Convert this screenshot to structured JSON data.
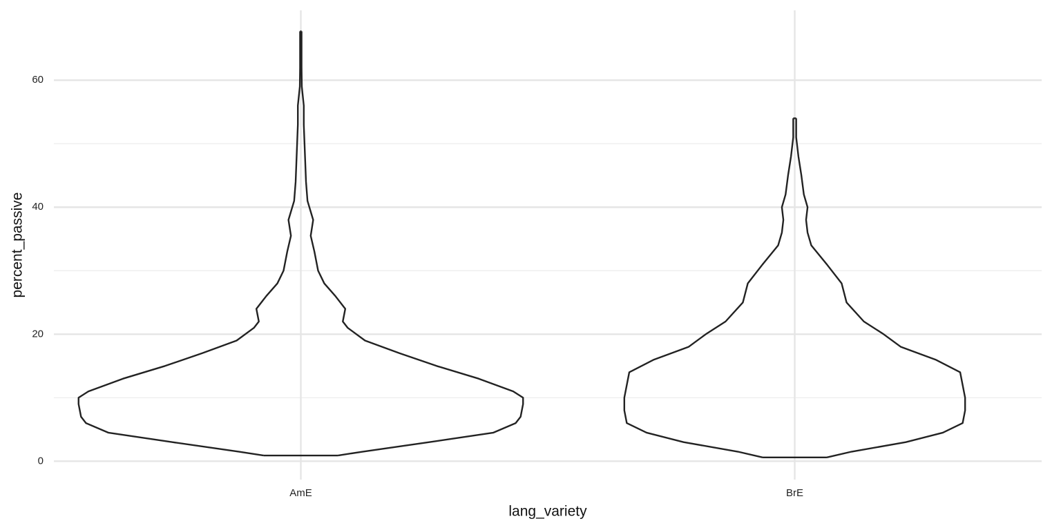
{
  "chart_data": {
    "type": "violin",
    "x_label": "lang_variety",
    "y_label": "percent_passive",
    "categories": [
      "AmE",
      "BrE"
    ],
    "ylim": [
      -2.9,
      71
    ],
    "yticks": [
      0,
      20,
      40,
      60
    ],
    "yminor": [
      10,
      30,
      50
    ],
    "grid": true,
    "color": "#222222",
    "violins": [
      {
        "y": [
          0.9,
          1.5,
          3,
          4.5,
          6,
          7,
          9,
          10,
          11,
          13,
          15,
          17,
          19,
          21,
          22,
          24,
          26,
          28,
          30,
          33,
          35.5,
          38,
          41,
          44,
          47,
          50,
          53,
          56,
          59,
          62,
          67.7
        ],
        "width": [
          0.15,
          0.25,
          0.52,
          0.78,
          0.87,
          0.89,
          0.9,
          0.9,
          0.86,
          0.72,
          0.55,
          0.4,
          0.26,
          0.19,
          0.17,
          0.18,
          0.14,
          0.095,
          0.07,
          0.055,
          0.04,
          0.05,
          0.027,
          0.021,
          0.018,
          0.015,
          0.012,
          0.012,
          0.004,
          0.003,
          0.003
        ]
      },
      {
        "y": [
          0.6,
          1.5,
          3,
          4.5,
          6,
          8,
          10,
          12,
          14,
          16,
          18,
          20,
          22,
          25,
          28,
          31,
          34,
          36,
          38,
          40,
          42,
          45,
          48,
          51,
          54
        ],
        "width": [
          0.13,
          0.23,
          0.45,
          0.6,
          0.68,
          0.69,
          0.69,
          0.68,
          0.67,
          0.57,
          0.43,
          0.36,
          0.28,
          0.21,
          0.19,
          0.13,
          0.067,
          0.052,
          0.046,
          0.052,
          0.037,
          0.027,
          0.015,
          0.006,
          0.006
        ]
      }
    ]
  }
}
